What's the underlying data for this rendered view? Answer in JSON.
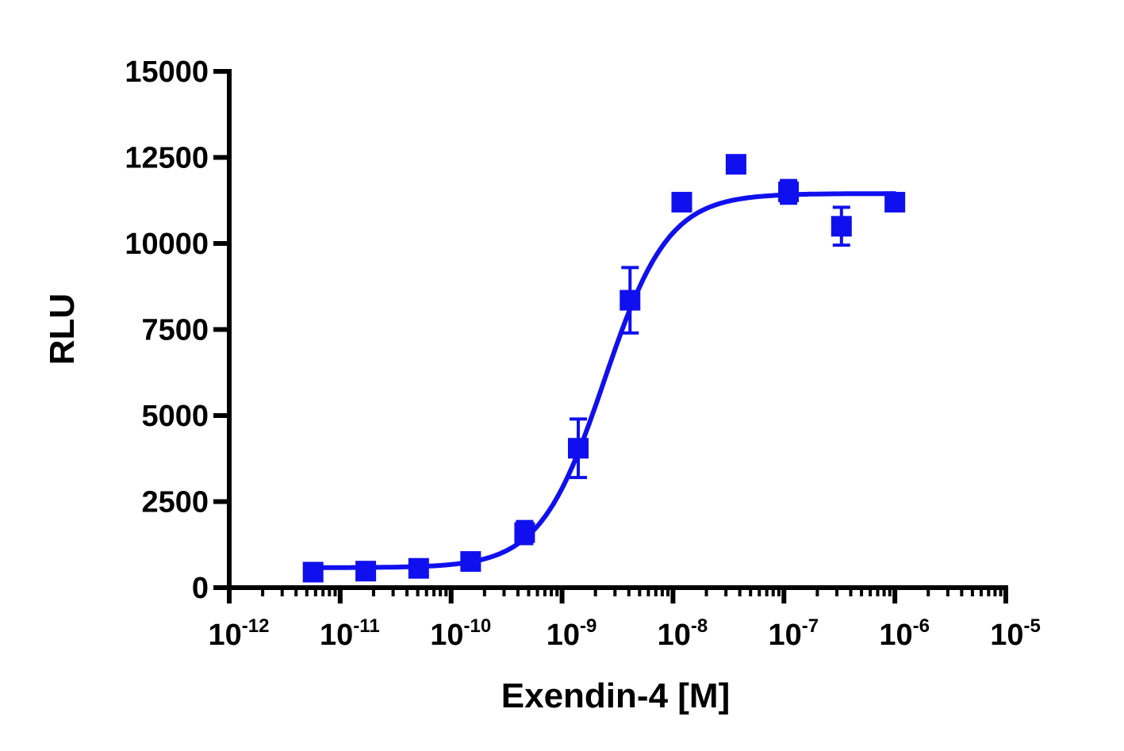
{
  "chart_data": {
    "type": "scatter",
    "xlabel": "Exendin-4 [M]",
    "ylabel": "RLU",
    "xscale": "log",
    "xlim": [
      1e-12,
      1e-05
    ],
    "ylim": [
      0,
      15000
    ],
    "grid": false,
    "legend": "none",
    "yticks": [
      0,
      2500,
      5000,
      7500,
      10000,
      12500,
      15000
    ],
    "ytick_labels": [
      "0",
      "2500",
      "5000",
      "7500",
      "10000",
      "12500",
      "15000"
    ],
    "xtick_labels": [
      {
        "base": "10",
        "exp": "-12",
        "value": 1e-12
      },
      {
        "base": "10",
        "exp": "-11",
        "value": 1e-11
      },
      {
        "base": "10",
        "exp": "-10",
        "value": 1e-10
      },
      {
        "base": "10",
        "exp": "-9",
        "value": 1e-09
      },
      {
        "base": "10",
        "exp": "-8",
        "value": 1e-08
      },
      {
        "base": "10",
        "exp": "-7",
        "value": 1e-07
      },
      {
        "base": "10",
        "exp": "-6",
        "value": 1e-06
      },
      {
        "base": "10",
        "exp": "-5",
        "value": 1e-05
      }
    ],
    "series": [
      {
        "color": "#1010ee",
        "marker": "square",
        "points": [
          {
            "x": 5.7e-12,
            "y": 450,
            "err": 100
          },
          {
            "x": 1.7e-11,
            "y": 480,
            "err": 100
          },
          {
            "x": 5.1e-11,
            "y": 560,
            "err": 100
          },
          {
            "x": 1.5e-10,
            "y": 760,
            "err": 100
          },
          {
            "x": 4.6e-10,
            "y": 1600,
            "err": 320
          },
          {
            "x": 1.4e-09,
            "y": 4050,
            "err": 850
          },
          {
            "x": 4.1e-09,
            "y": 8350,
            "err": 950
          },
          {
            "x": 1.2e-08,
            "y": 11200,
            "err": 150
          },
          {
            "x": 3.7e-08,
            "y": 12300,
            "err": 220
          },
          {
            "x": 1.1e-07,
            "y": 11500,
            "err": 330
          },
          {
            "x": 3.3e-07,
            "y": 10500,
            "err": 550
          },
          {
            "x": 1e-06,
            "y": 11200,
            "err": 100
          }
        ],
        "fit": {
          "model": "four-parameter logistic",
          "bottom": 580,
          "top": 11450,
          "logEC50": -8.62,
          "hill": 1.5,
          "x_range": [
            5.7e-12,
            1e-06
          ]
        }
      }
    ]
  }
}
